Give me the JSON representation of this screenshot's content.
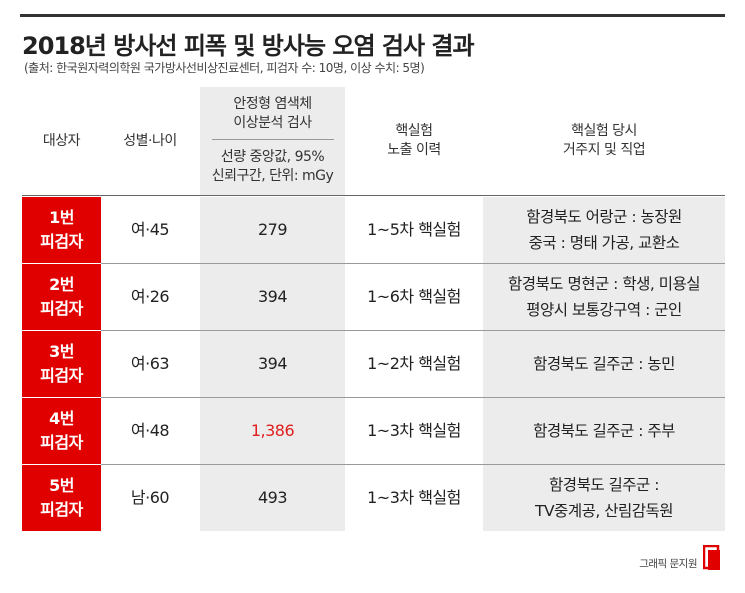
{
  "title": "2018년 방사선 피폭 및 방사능 오염 검사 결과",
  "subtitle": "(출처: 한국원자력의학원 국가방사선비상진료센터, 피검자 수: 10명, 이상 수치: 5명)",
  "headers": {
    "subject": "대상자",
    "sex_age": "성별·나이",
    "analysis_line1": "안정형 염색체",
    "analysis_line2": "이상분석 검사",
    "analysis_sub_line1": "선량 중앙값, 95%",
    "analysis_sub_line2": "신뢰구간, 단위: mGy",
    "history_line1": "핵실험",
    "history_line2": "노출 이력",
    "residence_line1": "핵실험 당시",
    "residence_line2": "거주지 및 직업"
  },
  "rows": [
    {
      "id_line1": "1번",
      "id_line2": "피검자",
      "sex_age": "여·45",
      "dose": "279",
      "highlight": false,
      "history": "1~5차 핵실험",
      "res_line1": "함경북도 어랑군 : 농장원",
      "res_line2": "중국 : 명태 가공, 교환소"
    },
    {
      "id_line1": "2번",
      "id_line2": "피검자",
      "sex_age": "여·26",
      "dose": "394",
      "highlight": false,
      "history": "1~6차 핵실험",
      "res_line1": "함경북도 명현군 : 학생, 미용실",
      "res_line2": "평양시 보통강구역 : 군인"
    },
    {
      "id_line1": "3번",
      "id_line2": "피검자",
      "sex_age": "여·63",
      "dose": "394",
      "highlight": false,
      "history": "1~2차 핵실험",
      "res_line1": "함경북도 길주군 : 농민",
      "res_line2": ""
    },
    {
      "id_line1": "4번",
      "id_line2": "피검자",
      "sex_age": "여·48",
      "dose": "1,386",
      "highlight": true,
      "history": "1~3차 핵실험",
      "res_line1": "함경북도 길주군 : 주부",
      "res_line2": ""
    },
    {
      "id_line1": "5번",
      "id_line2": "피검자",
      "sex_age": "남·60",
      "dose": "493",
      "highlight": false,
      "history": "1~3차 핵실험",
      "res_line1": "함경북도 길주군 :",
      "res_line2": "TV중계공, 산림감독원"
    }
  ],
  "footer": "그래픽 문지원",
  "colors": {
    "accent": "#e00000",
    "shade": "#ececec"
  }
}
